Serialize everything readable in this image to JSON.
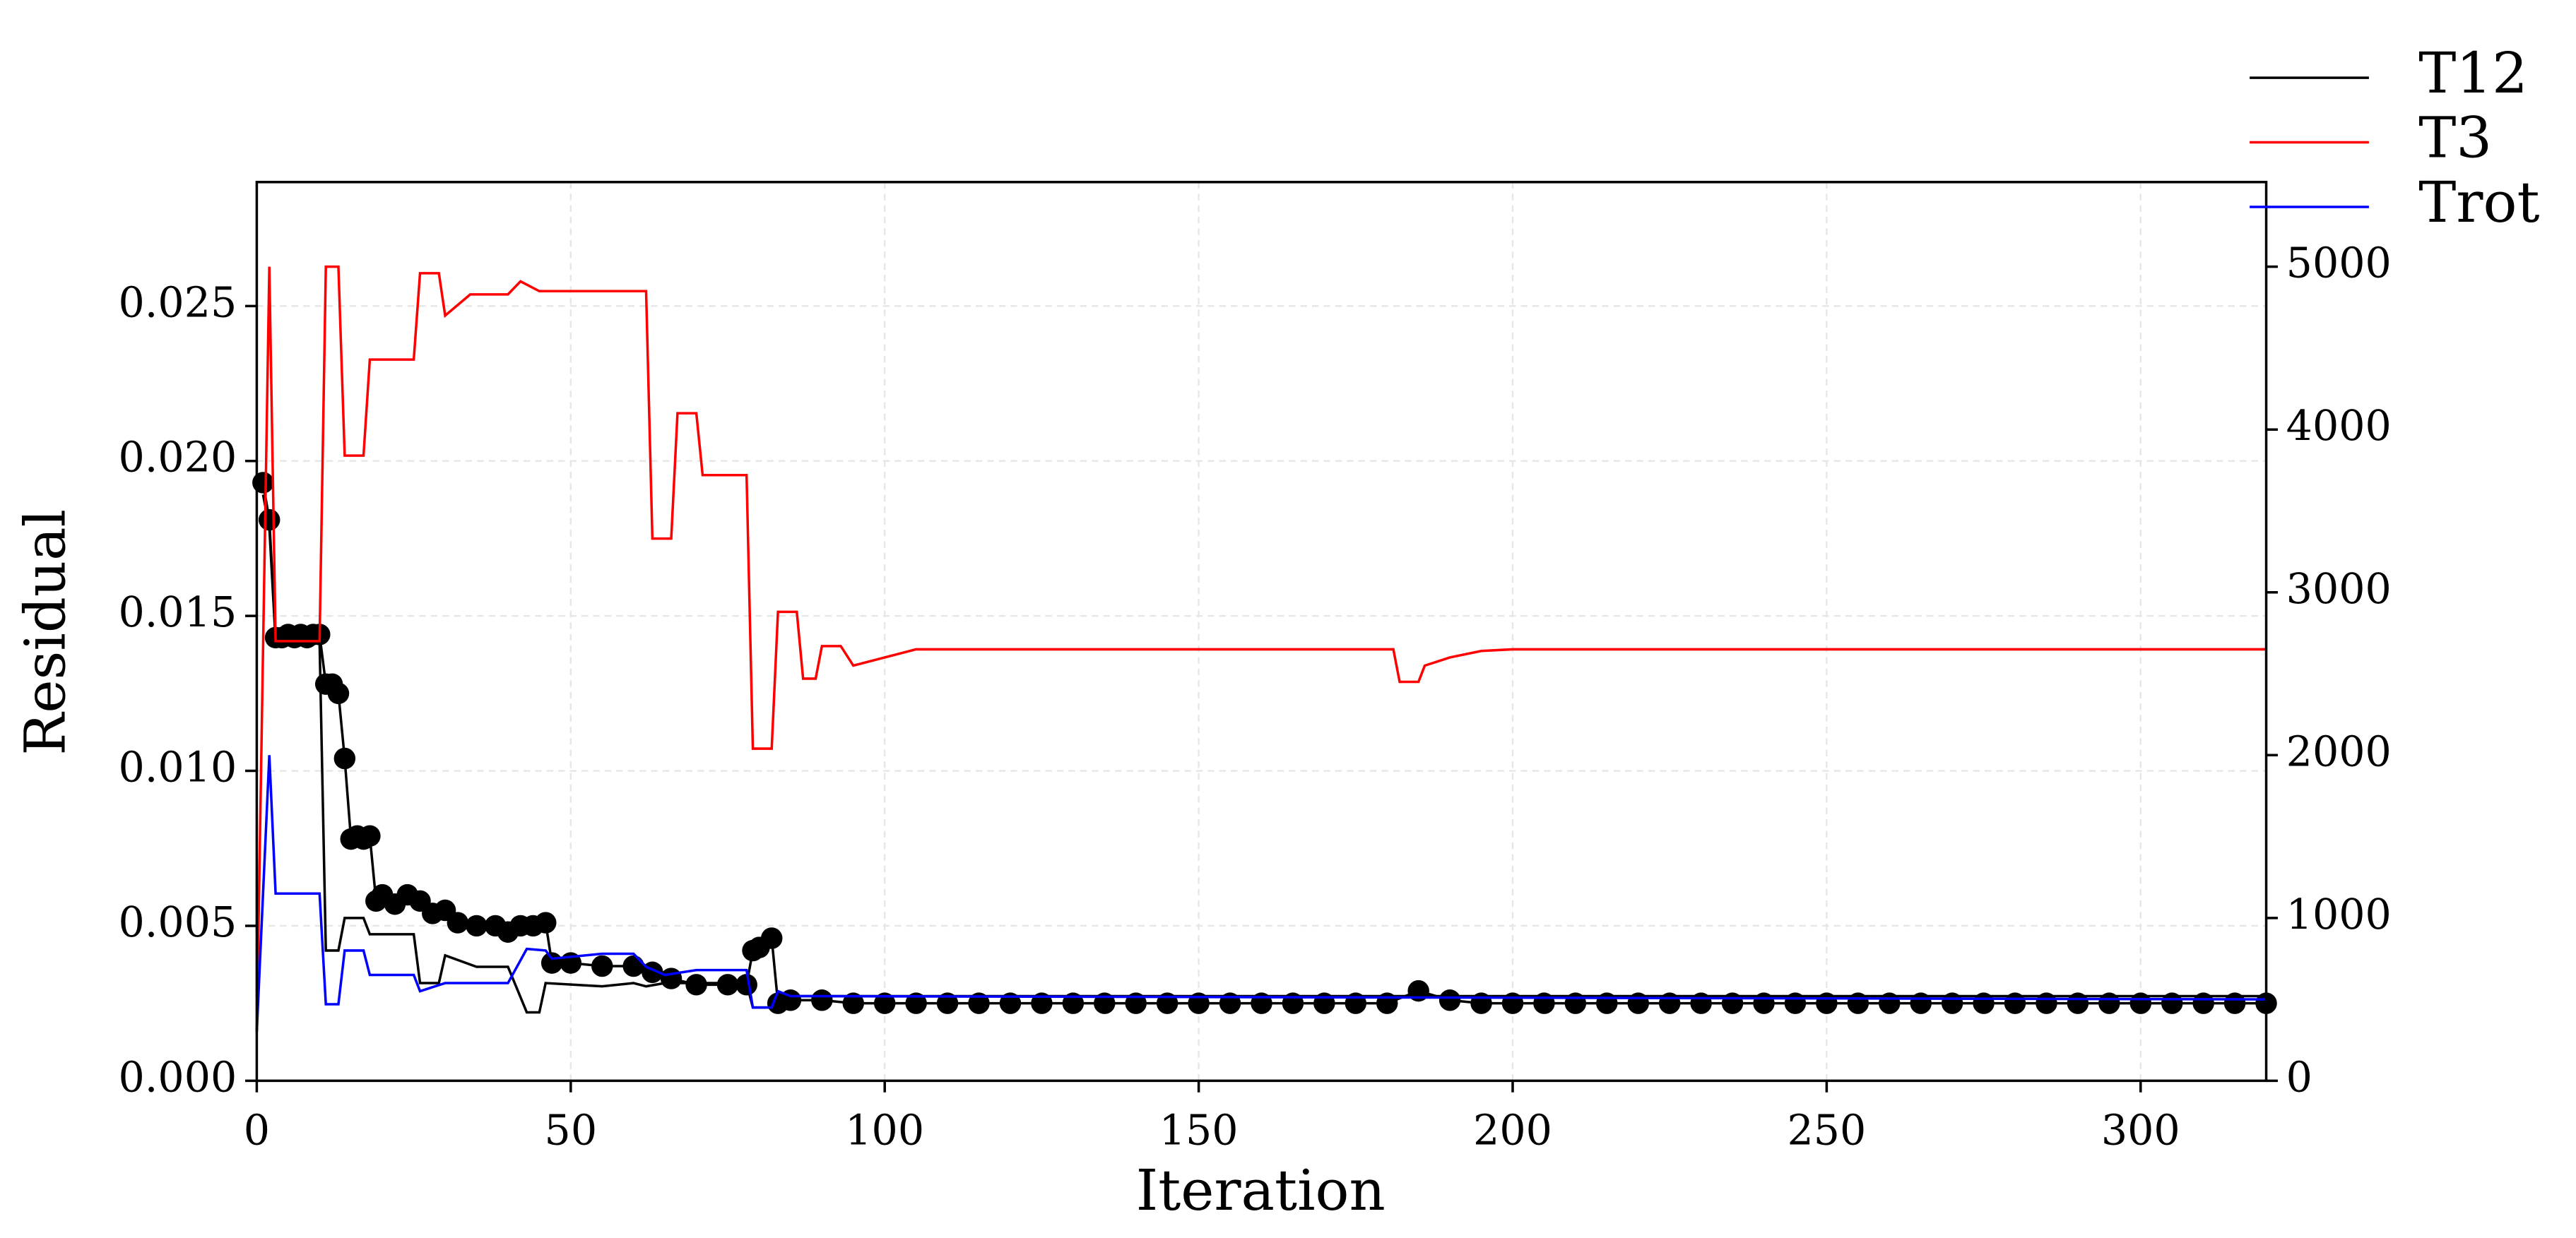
{
  "chart_data": {
    "type": "line",
    "xlabel": "Iteration",
    "ylabel": "Residual",
    "xlim": [
      0,
      320
    ],
    "xticks": [
      0,
      50,
      100,
      150,
      200,
      250,
      300
    ],
    "ylim": [
      0,
      0.029
    ],
    "yticks": [
      {
        "value": 0,
        "label": "0.000"
      },
      {
        "value": 0.005,
        "label": "0.005"
      },
      {
        "value": 0.01,
        "label": "0.010"
      },
      {
        "value": 0.015,
        "label": "0.015"
      },
      {
        "value": 0.02,
        "label": "0.020"
      },
      {
        "value": 0.025,
        "label": "0.025"
      }
    ],
    "y2lim": [
      0,
      5520
    ],
    "y2ticks": [
      0,
      1000,
      2000,
      3000,
      4000,
      5000
    ],
    "grid": true,
    "legend": "upper right",
    "series": [
      {
        "color": "#000000",
        "marker": "o",
        "x": [
          1,
          2,
          3,
          4,
          5,
          6,
          7,
          8,
          9,
          10,
          11,
          12,
          13,
          14,
          15,
          16,
          17,
          18,
          19,
          20,
          22,
          24,
          26,
          28,
          30,
          32,
          35,
          38,
          40,
          42,
          44,
          46,
          47,
          50,
          55,
          60,
          63,
          66,
          70,
          75,
          78,
          79,
          80,
          82,
          83,
          85,
          90,
          95,
          100,
          105,
          110,
          115,
          120,
          125,
          130,
          135,
          140,
          145,
          150,
          155,
          160,
          165,
          170,
          175,
          180,
          185,
          190,
          195,
          200,
          205,
          210,
          215,
          220,
          225,
          230,
          235,
          240,
          245,
          250,
          255,
          260,
          265,
          270,
          275,
          280,
          285,
          290,
          295,
          300,
          305,
          310,
          315,
          320
        ],
        "values": [
          0.0193,
          0.0181,
          0.0143,
          0.0143,
          0.0144,
          0.0143,
          0.0144,
          0.0143,
          0.0144,
          0.0144,
          0.0128,
          0.0128,
          0.0125,
          0.0104,
          0.0078,
          0.0079,
          0.0078,
          0.0079,
          0.0058,
          0.006,
          0.0057,
          0.006,
          0.0058,
          0.0054,
          0.0055,
          0.0051,
          0.005,
          0.005,
          0.0048,
          0.005,
          0.005,
          0.0051,
          0.0038,
          0.0038,
          0.0037,
          0.0037,
          0.0035,
          0.0033,
          0.0031,
          0.0031,
          0.0031,
          0.0042,
          0.0043,
          0.0046,
          0.0025,
          0.0026,
          0.0026,
          0.0025,
          0.0025,
          0.0025,
          0.0025,
          0.0025,
          0.0025,
          0.0025,
          0.0025,
          0.0025,
          0.0025,
          0.0025,
          0.0025,
          0.0025,
          0.0025,
          0.0025,
          0.0025,
          0.0025,
          0.0025,
          0.0029,
          0.0026,
          0.0025,
          0.0025,
          0.0025,
          0.0025,
          0.0025,
          0.0025,
          0.0025,
          0.0025,
          0.0025,
          0.0025,
          0.0025,
          0.0025,
          0.0025,
          0.0025,
          0.0025,
          0.0025,
          0.0025,
          0.0025,
          0.0025,
          0.0025,
          0.0025,
          0.0025,
          0.0025,
          0.0025,
          0.0025,
          0.0025
        ]
      },
      {
        "name": "T12",
        "color": "#000000",
        "axis": "y2",
        "x": [
          1,
          2,
          3,
          10,
          11,
          13,
          14,
          17,
          18,
          25,
          26,
          29,
          30,
          35,
          40,
          43,
          45,
          46,
          55,
          60,
          62,
          65,
          70,
          78,
          79,
          82,
          83,
          320
        ],
        "values": [
          3600,
          3400,
          2700,
          2700,
          800,
          800,
          1000,
          1000,
          900,
          900,
          600,
          600,
          770,
          700,
          700,
          420,
          420,
          600,
          580,
          600,
          580,
          600,
          600,
          600,
          450,
          450,
          520,
          520
        ]
      },
      {
        "name": "T3",
        "color": "#ff0000",
        "axis": "y2",
        "x": [
          0,
          2,
          3,
          10,
          11,
          13,
          14,
          17,
          18,
          25,
          26,
          29,
          30,
          34,
          40,
          42,
          45,
          62,
          63,
          66,
          67,
          70,
          71,
          78,
          79,
          82,
          83,
          86,
          87,
          89,
          90,
          93,
          95,
          100,
          105,
          181,
          182,
          185,
          186,
          190,
          195,
          200,
          320
        ],
        "values": [
          300,
          5000,
          2700,
          2700,
          5000,
          5000,
          3840,
          3840,
          4430,
          4430,
          4960,
          4960,
          4700,
          4830,
          4830,
          4910,
          4850,
          4850,
          3330,
          3330,
          4100,
          4100,
          3720,
          3720,
          2040,
          2040,
          2880,
          2880,
          2470,
          2470,
          2670,
          2670,
          2550,
          2600,
          2650,
          2650,
          2450,
          2450,
          2550,
          2600,
          2640,
          2650,
          2650
        ]
      },
      {
        "name": "Trot",
        "color": "#0000ff",
        "axis": "y2",
        "x": [
          0,
          2,
          3,
          10,
          11,
          13,
          14,
          17,
          18,
          25,
          26,
          30,
          40,
          43,
          46,
          47,
          55,
          60,
          62,
          65,
          70,
          78,
          79,
          82,
          83,
          85,
          320
        ],
        "values": [
          300,
          2000,
          1150,
          1150,
          470,
          470,
          800,
          800,
          650,
          650,
          550,
          600,
          600,
          810,
          800,
          750,
          780,
          780,
          700,
          650,
          680,
          680,
          450,
          450,
          550,
          520,
          500
        ]
      }
    ]
  }
}
